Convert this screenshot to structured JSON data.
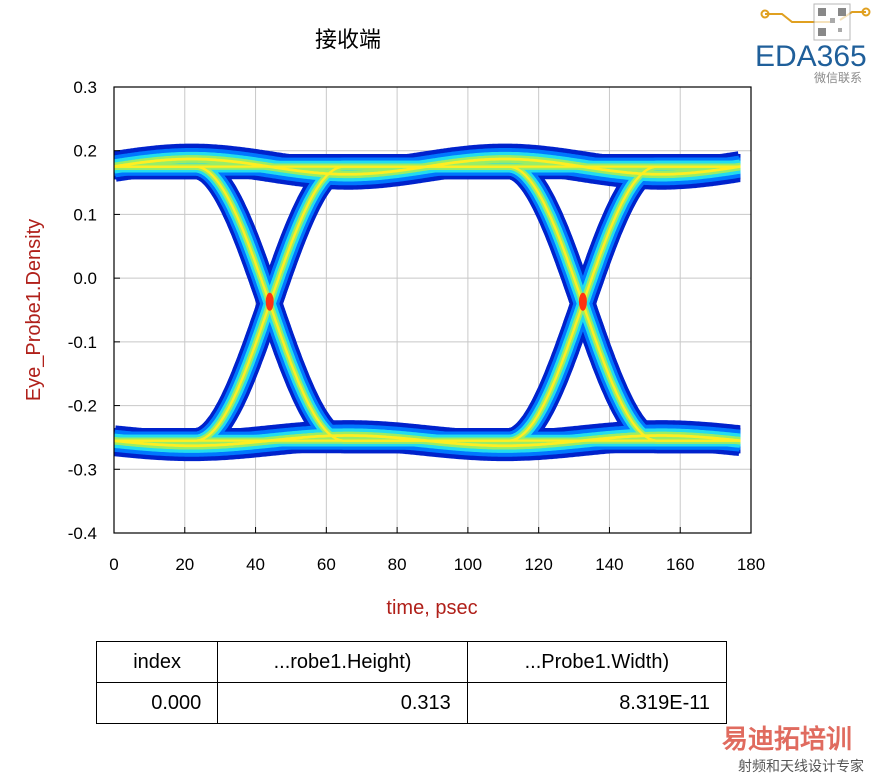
{
  "chart_data": {
    "type": "heatmap",
    "title": "接收端",
    "xlabel": "time, psec",
    "ylabel": "Eye_Probe1.Density",
    "xlim": [
      0,
      180
    ],
    "ylim": [
      -0.4,
      0.3
    ],
    "x_ticks": [
      "0",
      "20",
      "40",
      "60",
      "80",
      "100",
      "120",
      "140",
      "160",
      "180"
    ],
    "y_ticks": [
      "0.3",
      "0.2",
      "0.1",
      "0.0",
      "-0.1",
      "-0.2",
      "-0.3",
      "-0.4"
    ],
    "grid": true,
    "unit_interval_ps": 88.5,
    "eye_levels": {
      "high": 0.175,
      "low": -0.255
    },
    "crossings": [
      {
        "x": 44,
        "y": -0.037
      },
      {
        "x": 132.5,
        "y": -0.037
      }
    ],
    "x_range": [
      0,
      177
    ],
    "colormap": [
      "#0022cc",
      "#0077ff",
      "#22ddee",
      "#99ee66",
      "#ffee22",
      "#ff3311"
    ]
  },
  "table": {
    "headers": [
      "index",
      "...robe1.Height)",
      "...Probe1.Width)"
    ],
    "rows": [
      [
        "0.000",
        "0.313",
        "8.319E-11"
      ]
    ]
  },
  "watermarks": {
    "logo": "EDA365",
    "logo_sub": "微信联系",
    "training": "易迪拓培训",
    "training_sub": "射频和天线设计专家"
  }
}
